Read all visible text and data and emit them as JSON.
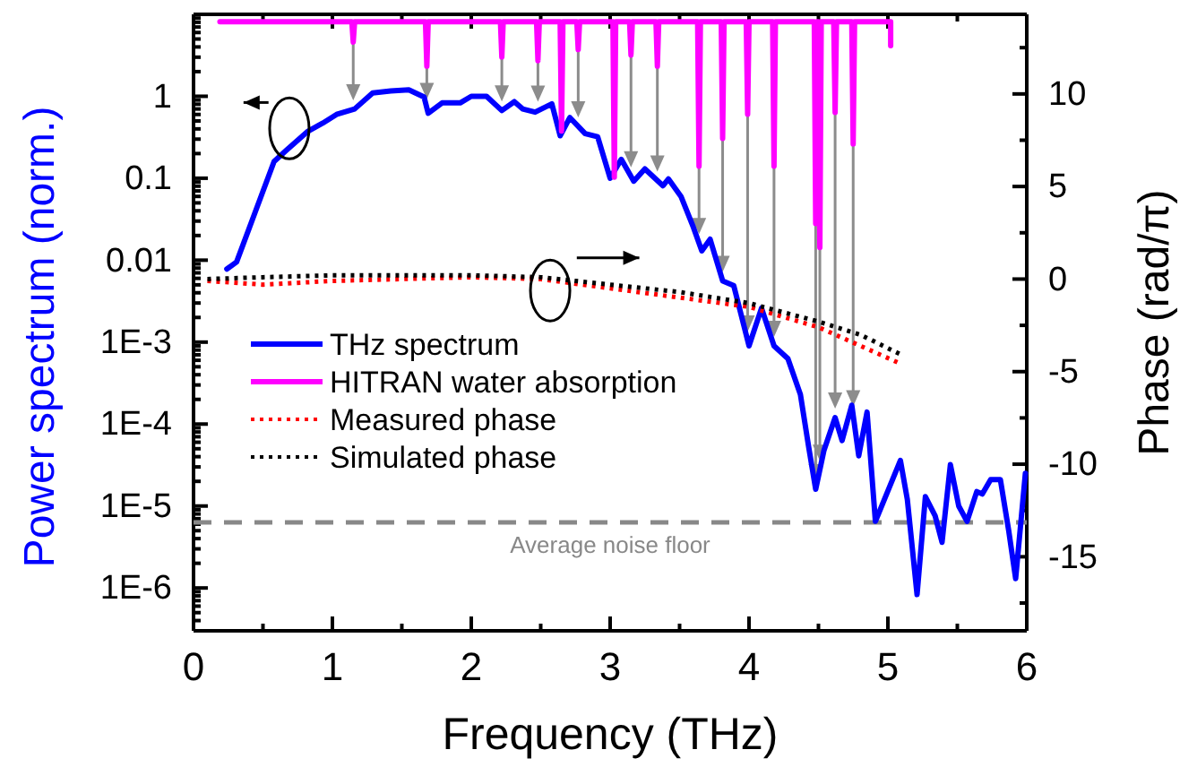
{
  "chart_data": {
    "type": "line",
    "xlabel": "Frequency (THz)",
    "ylabel": "Power spectrum (norm.)",
    "y2label": "Phase (rad/π)",
    "xlim": [
      0,
      6
    ],
    "xticks": [
      0,
      {
        "value": 0.5,
        "label": null
      },
      1,
      {
        "value": 1.5,
        "label": null
      },
      2,
      {
        "value": 2.5,
        "label": null
      },
      3,
      {
        "value": 3.5,
        "label": null
      },
      4,
      {
        "value": 4.5,
        "label": null
      },
      5,
      {
        "value": 5.5,
        "label": null
      },
      6
    ],
    "ylim": [
      3e-07,
      10
    ],
    "log": "y",
    "yticks": [
      {
        "value": 1e-06,
        "label": "1E-6"
      },
      {
        "value": 1e-05,
        "label": "1E-5"
      },
      {
        "value": 0.0001,
        "label": "1E-4"
      },
      {
        "value": 0.001,
        "label": "1E-3"
      },
      0.01,
      0.1,
      1,
      {
        "value": 10,
        "label": null
      },
      {
        "value": 4e-07,
        "label": null
      },
      {
        "value": 5e-07,
        "label": null
      },
      {
        "value": 6e-07,
        "label": null
      },
      {
        "value": 7e-07,
        "label": null
      },
      {
        "value": 8e-07,
        "label": null
      },
      {
        "value": 9e-07,
        "label": null
      },
      {
        "value": 2e-06,
        "label": null
      },
      {
        "value": 3e-06,
        "label": null
      },
      {
        "value": 4e-06,
        "label": null
      },
      {
        "value": 5e-06,
        "label": null
      },
      {
        "value": 6e-06,
        "label": null
      },
      {
        "value": 7e-06,
        "label": null
      },
      {
        "value": 8e-06,
        "label": null
      },
      {
        "value": 9e-06,
        "label": null
      },
      {
        "value": 2e-05,
        "label": null
      },
      {
        "value": 3e-05,
        "label": null
      },
      {
        "value": 4e-05,
        "label": null
      },
      {
        "value": 5e-05,
        "label": null
      },
      {
        "value": 6e-05,
        "label": null
      },
      {
        "value": 7e-05,
        "label": null
      },
      {
        "value": 8e-05,
        "label": null
      },
      {
        "value": 9e-05,
        "label": null
      },
      {
        "value": 0.0002,
        "label": null
      },
      {
        "value": 0.0003,
        "label": null
      },
      {
        "value": 0.0004,
        "label": null
      },
      {
        "value": 0.0005,
        "label": null
      },
      {
        "value": 0.0006,
        "label": null
      },
      {
        "value": 0.0007,
        "label": null
      },
      {
        "value": 0.0008,
        "label": null
      },
      {
        "value": 0.0009,
        "label": null
      },
      {
        "value": 0.002,
        "label": null
      },
      {
        "value": 0.003,
        "label": null
      },
      {
        "value": 0.004,
        "label": null
      },
      {
        "value": 0.005,
        "label": null
      },
      {
        "value": 0.006,
        "label": null
      },
      {
        "value": 0.007,
        "label": null
      },
      {
        "value": 0.008,
        "label": null
      },
      {
        "value": 0.009,
        "label": null
      },
      {
        "value": 0.02,
        "label": null
      },
      {
        "value": 0.03,
        "label": null
      },
      {
        "value": 0.04,
        "label": null
      },
      {
        "value": 0.05,
        "label": null
      },
      {
        "value": 0.06,
        "label": null
      },
      {
        "value": 0.07,
        "label": null
      },
      {
        "value": 0.08,
        "label": null
      },
      {
        "value": 0.09,
        "label": null
      },
      {
        "value": 0.2,
        "label": null
      },
      {
        "value": 0.3,
        "label": null
      },
      {
        "value": 0.4,
        "label": null
      },
      {
        "value": 0.5,
        "label": null
      },
      {
        "value": 0.6,
        "label": null
      },
      {
        "value": 0.7,
        "label": null
      },
      {
        "value": 0.8,
        "label": null
      },
      {
        "value": 0.9,
        "label": null
      },
      {
        "value": 2,
        "label": null
      },
      {
        "value": 3,
        "label": null
      },
      {
        "value": 4,
        "label": null
      },
      {
        "value": 5,
        "label": null
      },
      {
        "value": 6,
        "label": null
      },
      {
        "value": 7,
        "label": null
      },
      {
        "value": 8,
        "label": null
      },
      {
        "value": 9,
        "label": null
      }
    ],
    "y2lim": [
      -19,
      14.3
    ],
    "y2ticks": [
      -15,
      -10,
      -5,
      0,
      5,
      10,
      {
        "value": -17.5,
        "label": null
      },
      {
        "value": -12.5,
        "label": null
      },
      {
        "value": -7.5,
        "label": null
      },
      {
        "value": -2.5,
        "label": null
      },
      {
        "value": 2.5,
        "label": null
      },
      {
        "value": 7.5,
        "label": null
      },
      {
        "value": 12.5,
        "label": null
      }
    ],
    "grid": false,
    "legend": "left",
    "ref_lines": [
      {
        "axis": "y",
        "value": 6.3e-06,
        "label": "Average noise floor",
        "color": "#888888",
        "line_style": "dashed"
      }
    ],
    "series": [
      {
        "name": "THz spectrum",
        "color": "#0000ff",
        "line_style": "solid",
        "x": [
          0.24,
          0.31,
          0.45,
          0.58,
          0.67,
          0.82,
          0.93,
          1.03,
          1.16,
          1.29,
          1.42,
          1.55,
          1.66,
          1.69,
          1.79,
          1.92,
          2.0,
          2.11,
          2.22,
          2.31,
          2.37,
          2.46,
          2.58,
          2.64,
          2.71,
          2.82,
          2.91,
          3.0,
          3.08,
          3.17,
          3.25,
          3.38,
          3.42,
          3.51,
          3.6,
          3.66,
          3.72,
          3.81,
          3.89,
          4.0,
          4.09,
          4.18,
          4.22,
          4.28,
          4.37,
          4.43,
          4.48,
          4.54,
          4.62,
          4.67,
          4.74,
          4.79,
          4.85,
          4.91,
          5.09,
          5.14,
          5.21,
          5.27,
          5.34,
          5.39,
          5.45,
          5.51,
          5.57,
          5.64,
          5.68,
          5.74,
          5.81,
          5.87,
          5.92,
          5.99
        ],
        "values": [
          0.0078,
          0.0095,
          0.041,
          0.16,
          0.22,
          0.37,
          0.47,
          0.6,
          0.7,
          1.1,
          1.16,
          1.2,
          0.98,
          0.62,
          0.83,
          0.83,
          1.0,
          1.0,
          0.67,
          0.86,
          0.7,
          0.64,
          0.81,
          0.33,
          0.55,
          0.35,
          0.32,
          0.1,
          0.17,
          0.092,
          0.13,
          0.081,
          0.098,
          0.06,
          0.025,
          0.013,
          0.018,
          0.0056,
          0.0049,
          0.0009,
          0.0026,
          0.0009,
          0.00078,
          0.00063,
          0.00023,
          5.2e-05,
          1.6e-05,
          4.8e-05,
          0.00012,
          6.3e-05,
          0.00017,
          4.1e-05,
          0.00014,
          6.5e-06,
          3.6e-05,
          1.2e-05,
          8.3e-07,
          1.3e-05,
          7.6e-06,
          3.6e-06,
          3.2e-05,
          1e-05,
          6.5e-06,
          1.5e-05,
          1.4e-05,
          2.1e-05,
          2.1e-05,
          5e-06,
          1.3e-06,
          2.5e-05
        ]
      },
      {
        "name": "HITRAN water absorption",
        "color": "#ff00ff",
        "line_style": "solid",
        "axis": "y2",
        "x": [
          0.19,
          1.14,
          1.15,
          1.16,
          1.67,
          1.68,
          1.69,
          2.21,
          2.22,
          2.23,
          2.47,
          2.48,
          2.49,
          2.64,
          2.65,
          2.66,
          2.76,
          2.77,
          2.78,
          3.02,
          3.03,
          3.04,
          3.14,
          3.15,
          3.16,
          3.33,
          3.34,
          3.35,
          3.63,
          3.64,
          3.65,
          3.8,
          3.81,
          3.82,
          3.98,
          3.99,
          4.0,
          4.17,
          4.18,
          4.19,
          4.47,
          4.48,
          4.49,
          4.5,
          4.51,
          4.52,
          4.61,
          4.62,
          4.63,
          4.74,
          4.75,
          4.76,
          5.02,
          5.02
        ],
        "values": [
          13.9,
          13.9,
          12.8,
          13.9,
          13.9,
          11.5,
          13.9,
          13.9,
          12.0,
          13.9,
          13.9,
          11.8,
          13.9,
          13.9,
          8.0,
          13.9,
          13.9,
          12.4,
          13.9,
          13.9,
          5.5,
          13.9,
          13.9,
          12.1,
          13.9,
          13.9,
          11.5,
          13.9,
          13.9,
          6.1,
          13.9,
          13.9,
          7.6,
          13.9,
          13.9,
          8.9,
          13.9,
          13.9,
          6.1,
          13.9,
          13.9,
          3.0,
          13.9,
          13.9,
          1.7,
          13.9,
          13.9,
          9.0,
          13.9,
          13.9,
          7.3,
          13.9,
          13.9,
          12.6
        ]
      },
      {
        "name": "Measured phase",
        "color": "#ff0000",
        "line_style": "dotted",
        "axis": "y2",
        "x": [
          0.1,
          0.5,
          1,
          1.5,
          2,
          2.5,
          3,
          3.5,
          4,
          4.5,
          4.8,
          5.1
        ],
        "values": [
          -0.1,
          -0.3,
          -0.1,
          0,
          0.1,
          0,
          -0.5,
          -1.0,
          -1.5,
          -2.6,
          -3.6,
          -4.6
        ]
      },
      {
        "name": "Simulated phase",
        "color": "#000000",
        "line_style": "dotted",
        "axis": "y2",
        "x": [
          0.1,
          0.5,
          1,
          1.5,
          2,
          2.5,
          3,
          3.5,
          4,
          4.5,
          4.8,
          5.1
        ],
        "values": [
          0,
          0.1,
          0.2,
          0.2,
          0.2,
          0.1,
          -0.3,
          -0.7,
          -1.3,
          -2.3,
          -3.0,
          -4.1
        ]
      }
    ]
  }
}
